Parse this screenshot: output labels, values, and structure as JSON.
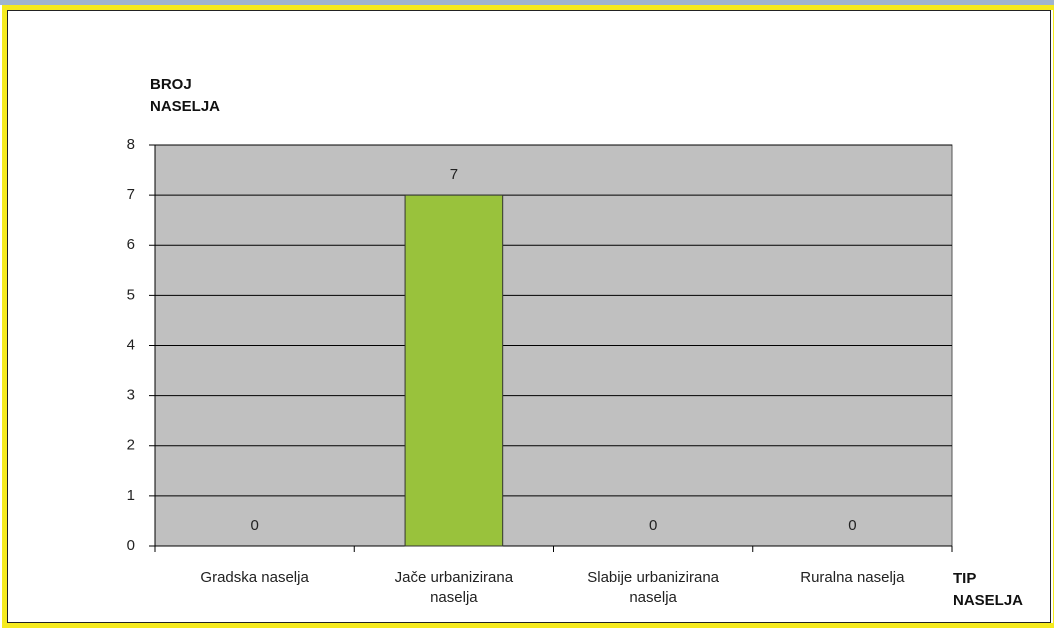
{
  "chart_data": {
    "type": "bar",
    "y_label": "BROJ NASELJA",
    "x_label": "TIP NASELJA",
    "categories": [
      "Gradska naselja",
      "Jače urbanizirana naselja",
      "Slabije urbanizirana naselja",
      "Ruralna naselja"
    ],
    "values": [
      0,
      7,
      0,
      0
    ],
    "color": "#99c23c",
    "ylim": [
      0,
      8
    ],
    "yticks": [
      0,
      1,
      2,
      3,
      4,
      5,
      6,
      7,
      8
    ],
    "grid": true,
    "plot_background": "#c0c0c0"
  }
}
